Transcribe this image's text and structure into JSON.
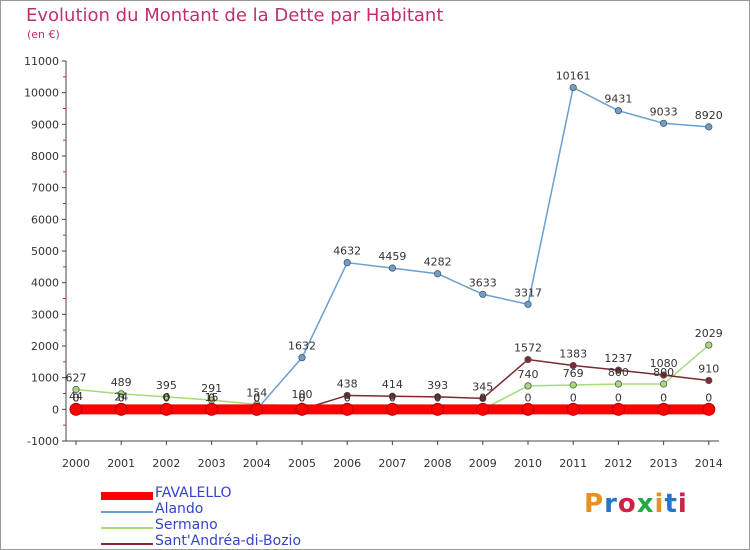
{
  "header": {
    "title": "Evolution du Montant de la Dette par Habitant",
    "subtitle": "(en €)"
  },
  "logo": {
    "text": "Proxiti",
    "colors": [
      "#e89020",
      "#2277cc",
      "#cc2244",
      "#22aa44"
    ]
  },
  "chart_data": {
    "type": "line",
    "title": "Evolution du Montant de la Dette par Habitant",
    "subtitle": "(en €)",
    "x": [
      "2000",
      "2001",
      "2002",
      "2003",
      "2004",
      "2005",
      "2006",
      "2007",
      "2008",
      "2009",
      "2010",
      "2011",
      "2012",
      "2013",
      "2014"
    ],
    "ylim": [
      -1000,
      11000
    ],
    "yticks": [
      -1000,
      0,
      1000,
      2000,
      3000,
      4000,
      5000,
      6000,
      7000,
      8000,
      9000,
      10000,
      11000
    ],
    "grid": false,
    "legend_position": "bottom-left",
    "series": [
      {
        "name": "FAVALELLO",
        "color": "#ff0000",
        "values": [
          0,
          0,
          0,
          0,
          0,
          0,
          0,
          0,
          0,
          0,
          0,
          0,
          0,
          0,
          0
        ],
        "labels": [
          "0",
          "0",
          "0",
          "0",
          "0",
          "0",
          "0",
          "0",
          "0",
          "0",
          "0",
          "0",
          "0",
          "0",
          "0"
        ]
      },
      {
        "name": "Alando",
        "color": "#6a9fd0",
        "values": [
          0,
          0,
          0,
          0,
          0,
          1632,
          4632,
          4459,
          4282,
          3633,
          3317,
          10161,
          9431,
          9033,
          8920
        ],
        "labels": [
          "0",
          "0",
          "0",
          "0",
          "0",
          "1632",
          "4632",
          "4459",
          "4282",
          "3633",
          "3317",
          "10161",
          "9431",
          "9033",
          "8920"
        ]
      },
      {
        "name": "Sermano",
        "color": "#a6db7a",
        "values": [
          627,
          489,
          395,
          291,
          154,
          100,
          0,
          0,
          0,
          0,
          740,
          769,
          800,
          800,
          2029
        ],
        "labels": [
          "627",
          "489",
          "395",
          "291",
          "154",
          "100",
          "0",
          "0",
          "0",
          "0",
          "740",
          "769",
          "800",
          "800",
          "2029"
        ]
      },
      {
        "name": "Sant'Andréa-di-Bozio",
        "color": "#7a2a30",
        "values": [
          44,
          24,
          6,
          15,
          0,
          0,
          438,
          414,
          393,
          345,
          1572,
          1383,
          1237,
          1080,
          910
        ],
        "labels": [
          "44",
          "24",
          "6",
          "15",
          "0",
          "0",
          "438",
          "414",
          "393",
          "345",
          "1572",
          "1383",
          "1237",
          "1080",
          "910"
        ]
      }
    ]
  }
}
